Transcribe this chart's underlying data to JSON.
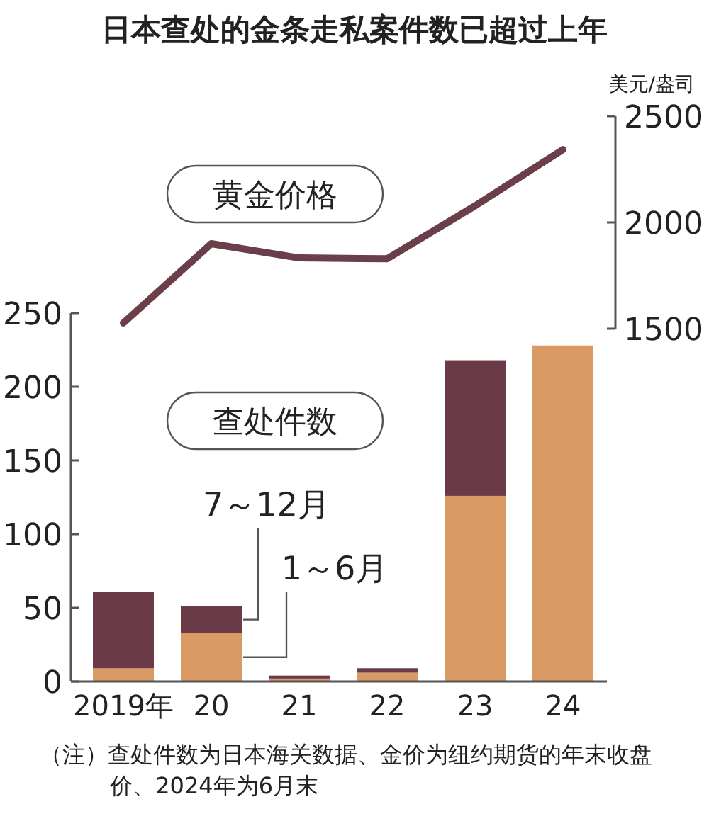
{
  "chart_data": [
    {
      "type": "line",
      "title": "日本查处的金条走私案件数已超过上年",
      "ylabel": "美元/盎司",
      "categories": [
        null,
        null,
        null,
        null,
        null,
        null
      ],
      "tick_labels": "y",
      "series": [
        {
          "name": "黄金价格",
          "color": "#6b3f4a",
          "values": [
            1527,
            1900,
            1833,
            1829,
            2078,
            2343
          ]
        }
      ],
      "ylim": [
        1500,
        2500
      ],
      "yticks": [
        1500,
        2000,
        2500
      ],
      "grid": false,
      "legend": false
    },
    {
      "type": "bar",
      "categories": [
        "2019年",
        "20",
        "21",
        "22",
        "23",
        "24"
      ],
      "stacked": true,
      "series": [
        {
          "name": "1～6月",
          "color": "#d99a64",
          "values": [
            9,
            33,
            2,
            6,
            126,
            228
          ]
        },
        {
          "name": "7～12月",
          "color": "#6b3a47",
          "values": [
            52,
            18,
            2,
            3,
            92,
            null
          ]
        }
      ],
      "ylim": [
        0,
        250
      ],
      "yticks": [
        0,
        50,
        100,
        150,
        200,
        250
      ],
      "grid": false,
      "legend": false,
      "annotations": [
        "查处件数",
        "（注）查处件数为日本海关数据、金价为纽约期货的年末收盘价、2024年为6月末"
      ]
    }
  ]
}
